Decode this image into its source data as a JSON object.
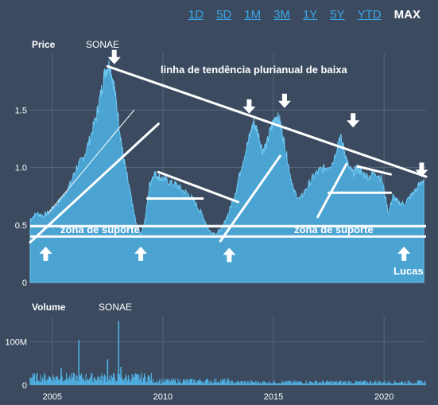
{
  "range_buttons": [
    {
      "label": "1D",
      "active": false
    },
    {
      "label": "5D",
      "active": false
    },
    {
      "label": "1M",
      "active": false
    },
    {
      "label": "3M",
      "active": false
    },
    {
      "label": "1Y",
      "active": false
    },
    {
      "label": "5Y",
      "active": false
    },
    {
      "label": "YTD",
      "active": false
    },
    {
      "label": "MAX",
      "active": true
    }
  ],
  "colors": {
    "background": "#3b4a5f",
    "series_fill": "#4fb3e6",
    "series_line": "#6dc8f2",
    "grid": "#55657a",
    "annotation": "#ffffff",
    "active_button": "#ffffff",
    "button": "#3aa7e6"
  },
  "chart_data": [
    {
      "type": "area",
      "panel_label": "Price",
      "series_name": "SONAE",
      "ylim": [
        0,
        2.0
      ],
      "yticks": [
        0,
        0.5,
        1.0,
        1.5
      ],
      "ytick_labels": [
        "0",
        "0.5",
        "1.0",
        "1.5"
      ],
      "x_range": [
        2004.0,
        2021.9
      ],
      "grid": true,
      "x": [
        2004.0,
        2004.3,
        2004.6,
        2004.9,
        2005.2,
        2005.5,
        2005.8,
        2006.1,
        2006.4,
        2006.7,
        2007.0,
        2007.2,
        2007.4,
        2007.6,
        2007.8,
        2008.0,
        2008.2,
        2008.4,
        2008.6,
        2008.8,
        2009.0,
        2009.2,
        2009.4,
        2009.6,
        2009.8,
        2010.0,
        2010.3,
        2010.6,
        2010.9,
        2011.2,
        2011.5,
        2011.8,
        2012.1,
        2012.4,
        2012.7,
        2013.0,
        2013.3,
        2013.6,
        2013.9,
        2014.1,
        2014.3,
        2014.5,
        2014.7,
        2014.9,
        2015.1,
        2015.3,
        2015.5,
        2015.7,
        2015.9,
        2016.2,
        2016.5,
        2016.8,
        2017.1,
        2017.4,
        2017.7,
        2018.0,
        2018.2,
        2018.4,
        2018.6,
        2018.8,
        2019.0,
        2019.3,
        2019.6,
        2019.9,
        2020.2,
        2020.4,
        2020.6,
        2020.9,
        2021.2,
        2021.5,
        2021.8
      ],
      "values": [
        0.55,
        0.6,
        0.58,
        0.62,
        0.68,
        0.75,
        0.85,
        1.0,
        1.08,
        1.25,
        1.45,
        1.65,
        1.85,
        1.9,
        1.7,
        1.4,
        1.1,
        0.9,
        0.7,
        0.5,
        0.42,
        0.55,
        0.85,
        0.95,
        0.92,
        0.9,
        0.87,
        0.85,
        0.8,
        0.76,
        0.68,
        0.58,
        0.45,
        0.42,
        0.48,
        0.62,
        0.8,
        1.05,
        1.25,
        1.4,
        1.3,
        1.15,
        1.2,
        1.35,
        1.45,
        1.4,
        1.2,
        1.0,
        0.8,
        0.72,
        0.82,
        0.92,
        0.98,
        1.0,
        1.05,
        1.28,
        1.15,
        1.0,
        0.95,
        1.0,
        0.95,
        0.92,
        0.96,
        0.9,
        0.6,
        0.75,
        0.7,
        0.68,
        0.75,
        0.82,
        0.9
      ]
    },
    {
      "type": "bar",
      "panel_label": "Volume",
      "series_name": "SONAE",
      "ytick_labels": [
        "0",
        "100M"
      ],
      "yticks": [
        0,
        100
      ],
      "ylim": [
        0,
        160
      ],
      "xtick_labels": [
        "2005",
        "2010",
        "2015",
        "2020"
      ],
      "xticks": [
        2005,
        2010,
        2015,
        2020
      ],
      "x_range": [
        2004.0,
        2021.9
      ],
      "grid": true,
      "spikes": [
        {
          "x": 2006.2,
          "value": 104
        },
        {
          "x": 2007.5,
          "value": 60
        },
        {
          "x": 2008.0,
          "value": 148
        },
        {
          "x": 2008.1,
          "value": 42
        },
        {
          "x": 2005.4,
          "value": 40
        }
      ],
      "baseline_levels": [
        {
          "from": 2004.0,
          "to": 2009.5,
          "value": 18
        },
        {
          "from": 2009.5,
          "to": 2013.0,
          "value": 10
        },
        {
          "from": 2013.0,
          "to": 2021.9,
          "value": 7
        }
      ]
    }
  ],
  "annotations": {
    "trend_label": "linha de tendência plurianual de baixa",
    "support_label_left": "zona de suporte",
    "support_label_right": "zona de suporte",
    "signature": "Lucas",
    "trendline": {
      "from": [
        2007.5,
        1.88
      ],
      "to": [
        2021.9,
        0.92
      ]
    },
    "support_lines": [
      0.49,
      0.4
    ],
    "lines": [
      {
        "from": [
          2004.0,
          0.35
        ],
        "to": [
          2009.8,
          1.38
        ]
      },
      {
        "from": [
          2004.8,
          0.6
        ],
        "to": [
          2008.7,
          1.5
        ]
      },
      {
        "from": [
          2009.8,
          0.96
        ],
        "to": [
          2013.4,
          0.7
        ]
      },
      {
        "from": [
          2009.3,
          0.73
        ],
        "to": [
          2011.8,
          0.73
        ]
      },
      {
        "from": [
          2012.6,
          0.36
        ],
        "to": [
          2015.3,
          1.1
        ]
      },
      {
        "from": [
          2017.0,
          0.57
        ],
        "to": [
          2018.3,
          1.03
        ]
      },
      {
        "from": [
          2017.5,
          0.78
        ],
        "to": [
          2020.3,
          0.78
        ]
      },
      {
        "from": [
          2018.8,
          1.01
        ],
        "to": [
          2020.3,
          0.94
        ]
      }
    ],
    "down_arrows": [
      [
        2007.8,
        1.96
      ],
      [
        2013.9,
        1.53
      ],
      [
        2015.5,
        1.58
      ],
      [
        2018.6,
        1.41
      ],
      [
        2021.7,
        0.98
      ]
    ],
    "up_arrows": [
      [
        2004.7,
        0.25
      ],
      [
        2009.0,
        0.25
      ],
      [
        2013.0,
        0.24
      ],
      [
        2020.9,
        0.25
      ]
    ]
  }
}
